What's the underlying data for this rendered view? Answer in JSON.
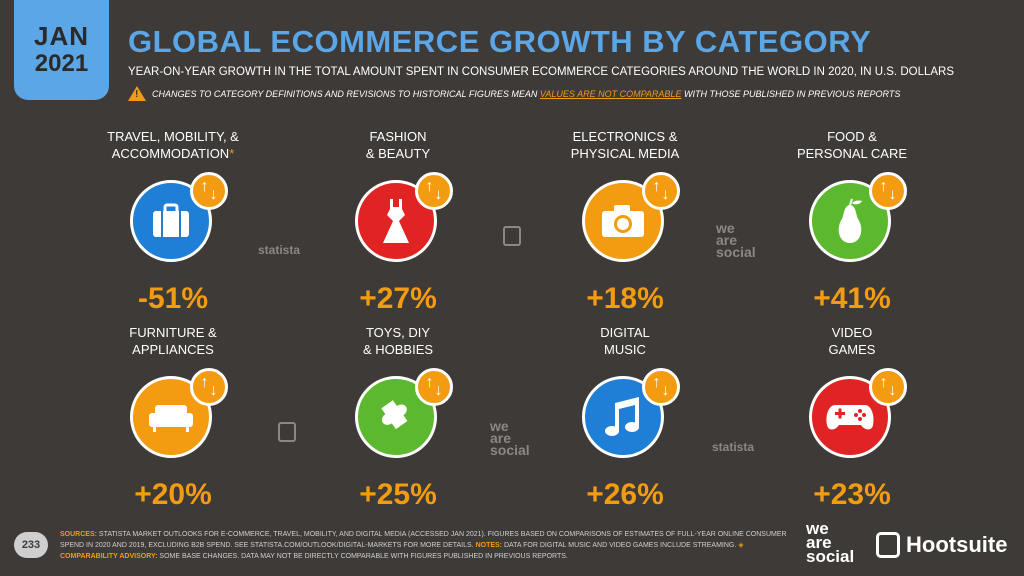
{
  "badge": {
    "month": "JAN",
    "year": "2021"
  },
  "title": "GLOBAL ECOMMERCE GROWTH BY CATEGORY",
  "subtitle": "YEAR-ON-YEAR GROWTH IN THE TOTAL AMOUNT SPENT IN CONSUMER ECOMMERCE CATEGORIES AROUND THE WORLD IN 2020, IN U.S. DOLLARS",
  "warning": {
    "before": "CHANGES TO CATEGORY DEFINITIONS AND REVISIONS TO HISTORICAL FIGURES MEAN ",
    "highlight": "VALUES ARE NOT COMPARABLE",
    "after": " WITH THOSE PUBLISHED IN PREVIOUS REPORTS"
  },
  "categories": [
    {
      "line1": "TRAVEL, MOBILITY, &",
      "line2": "ACCOMMODATION",
      "star": "*",
      "value": "-51%",
      "color": "#1f7fd6",
      "icon": "suitcase-icon"
    },
    {
      "line1": "FASHION",
      "line2": "& BEAUTY",
      "star": "",
      "value": "+27%",
      "color": "#e02424",
      "icon": "dress-icon"
    },
    {
      "line1": "ELECTRONICS &",
      "line2": "PHYSICAL MEDIA",
      "star": "",
      "value": "+18%",
      "color": "#f39c12",
      "icon": "camera-icon"
    },
    {
      "line1": "FOOD &",
      "line2": "PERSONAL CARE",
      "star": "",
      "value": "+41%",
      "color": "#5cb82e",
      "icon": "pear-icon"
    },
    {
      "line1": "FURNITURE &",
      "line2": "APPLIANCES",
      "star": "",
      "value": "+20%",
      "color": "#f39c12",
      "icon": "sofa-icon"
    },
    {
      "line1": "TOYS, DIY",
      "line2": "& HOBBIES",
      "star": "",
      "value": "+25%",
      "color": "#5cb82e",
      "icon": "puzzle-icon"
    },
    {
      "line1": "DIGITAL",
      "line2": "MUSIC",
      "star": "",
      "value": "+26%",
      "color": "#1f7fd6",
      "icon": "music-note-icon"
    },
    {
      "line1": "VIDEO",
      "line2": "GAMES",
      "star": "",
      "value": "+23%",
      "color": "#e02424",
      "icon": "gamepad-icon"
    }
  ],
  "watermarks": {
    "statista": "statista",
    "we": "we",
    "are": "are",
    "social": "social"
  },
  "footer": {
    "page": "233",
    "sources_label": "SOURCES:",
    "sources_text": " STATISTA MARKET OUTLOOKS FOR E-COMMERCE, TRAVEL, MOBILITY, AND DIGITAL MEDIA (ACCESSED JAN 2021). FIGURES BASED ON COMPARISONS OF ESTIMATES OF FULL-YEAR ONLINE CONSUMER SPEND IN 2020 AND 2019, EXCLUDING B2B SPEND. SEE STATISTA.COM/OUTLOOK/DIGITAL-MARKETS FOR MORE DETAILS. ",
    "notes_label": "NOTES:",
    "notes_text": " DATA FOR DIGITAL MUSIC AND VIDEO GAMES INCLUDE STREAMING. ",
    "advisory_label": "◈ COMPARABILITY ADVISORY:",
    "advisory_text": " SOME BASE CHANGES. DATA MAY NOT BE DIRECTLY COMPARABLE WITH FIGURES PUBLISHED IN PREVIOUS REPORTS."
  },
  "logos": {
    "we": "we",
    "are": "are",
    "social": "social",
    "hootsuite": "Hootsuite"
  }
}
